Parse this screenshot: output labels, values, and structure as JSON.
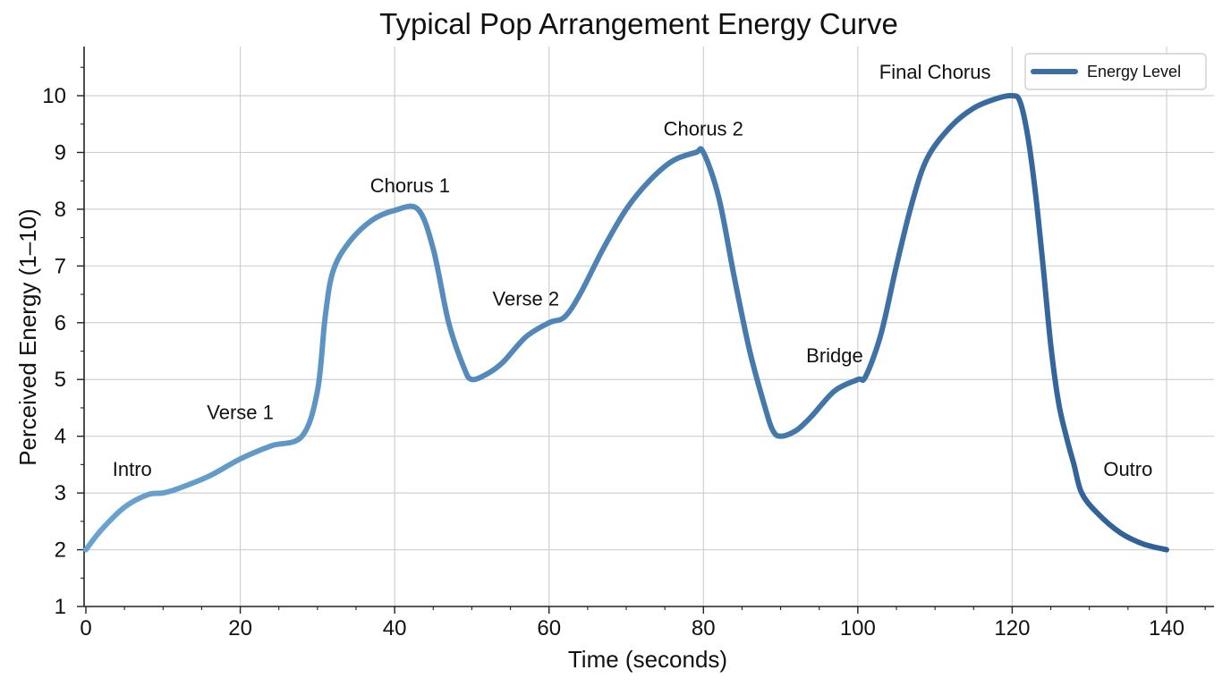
{
  "chart_data": {
    "type": "line",
    "title": "Typical Pop Arrangement Energy Curve",
    "xlabel": "Time (seconds)",
    "ylabel": "Perceived Energy (1–10)",
    "xlim": [
      0,
      146
    ],
    "ylim": [
      1,
      10.9
    ],
    "xticks": [
      "0",
      "20",
      "40",
      "60",
      "80",
      "100",
      "120",
      "140"
    ],
    "yticks": [
      "1",
      "2",
      "3",
      "4",
      "5",
      "6",
      "7",
      "8",
      "9",
      "10"
    ],
    "grid": true,
    "legend_position": "top-right",
    "series": [
      {
        "name": "Energy Level",
        "color_start": "#6aa3d0",
        "color_end": "#2f5f95",
        "points": [
          [
            0,
            2
          ],
          [
            2,
            2.35
          ],
          [
            5,
            2.75
          ],
          [
            8,
            2.97
          ],
          [
            10,
            3.0
          ],
          [
            12,
            3.08
          ],
          [
            16,
            3.3
          ],
          [
            20,
            3.6
          ],
          [
            24,
            3.83
          ],
          [
            28,
            4.0
          ],
          [
            30,
            4.8
          ],
          [
            31,
            6.1
          ],
          [
            32,
            6.9
          ],
          [
            34,
            7.4
          ],
          [
            37,
            7.8
          ],
          [
            40,
            7.98
          ],
          [
            43,
            8.0
          ],
          [
            45,
            7.3
          ],
          [
            47,
            6.0
          ],
          [
            49,
            5.2
          ],
          [
            50,
            5.0
          ],
          [
            52,
            5.1
          ],
          [
            54,
            5.3
          ],
          [
            57,
            5.75
          ],
          [
            60,
            6.0
          ],
          [
            62,
            6.1
          ],
          [
            64,
            6.5
          ],
          [
            67,
            7.3
          ],
          [
            70,
            8.0
          ],
          [
            73,
            8.5
          ],
          [
            76,
            8.85
          ],
          [
            79,
            9.0
          ],
          [
            80,
            9.0
          ],
          [
            82,
            8.2
          ],
          [
            84,
            6.8
          ],
          [
            86,
            5.5
          ],
          [
            88,
            4.5
          ],
          [
            89,
            4.1
          ],
          [
            90,
            4.0
          ],
          [
            92,
            4.1
          ],
          [
            94,
            4.35
          ],
          [
            97,
            4.8
          ],
          [
            100,
            5.0
          ],
          [
            101,
            5.05
          ],
          [
            103,
            5.8
          ],
          [
            105,
            7.0
          ],
          [
            107,
            8.1
          ],
          [
            109,
            8.9
          ],
          [
            112,
            9.45
          ],
          [
            115,
            9.78
          ],
          [
            118,
            9.95
          ],
          [
            120,
            10.0
          ],
          [
            121,
            9.9
          ],
          [
            122,
            9.3
          ],
          [
            123,
            8.3
          ],
          [
            124,
            7.0
          ],
          [
            125,
            5.6
          ],
          [
            126,
            4.6
          ],
          [
            127,
            4.0
          ],
          [
            128,
            3.5
          ],
          [
            129,
            3.0
          ],
          [
            131,
            2.65
          ],
          [
            134,
            2.3
          ],
          [
            137,
            2.1
          ],
          [
            140,
            2.0
          ]
        ]
      }
    ],
    "annotations": [
      {
        "text": "Intro",
        "x": 6,
        "y": 3.3
      },
      {
        "text": "Verse 1",
        "x": 20,
        "y": 4.3
      },
      {
        "text": "Chorus 1",
        "x": 42,
        "y": 8.3
      },
      {
        "text": "Verse 2",
        "x": 57,
        "y": 6.3
      },
      {
        "text": "Chorus 2",
        "x": 80,
        "y": 9.3
      },
      {
        "text": "Bridge",
        "x": 97,
        "y": 5.3
      },
      {
        "text": "Final Chorus",
        "x": 110,
        "y": 10.3
      },
      {
        "text": "Outro",
        "x": 135,
        "y": 3.3
      }
    ]
  }
}
